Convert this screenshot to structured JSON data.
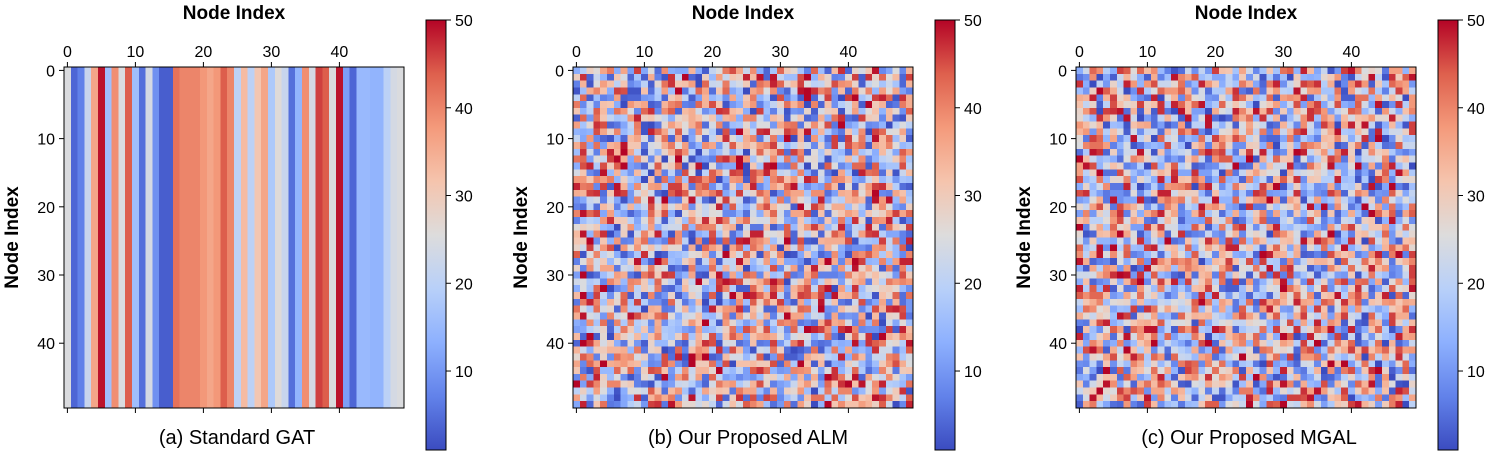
{
  "chart_data": [
    {
      "type": "heatmap",
      "caption": "(a) Standard GAT",
      "xlabel": "Node Index",
      "ylabel": "Node Index",
      "size": 50,
      "pattern": "columns",
      "seed": 11,
      "x_ticks": [
        "0",
        "10",
        "20",
        "30",
        "40"
      ],
      "y_ticks": [
        "0",
        "10",
        "20",
        "30",
        "40"
      ],
      "colorbar": {
        "min": 1,
        "max": 50,
        "ticks": [
          "10",
          "20",
          "30",
          "40",
          "50"
        ],
        "colormap": "coolwarm"
      },
      "column_values": [
        25,
        4,
        7,
        22,
        36,
        49,
        16,
        39,
        25,
        44,
        16,
        5,
        24,
        9,
        3,
        3,
        42,
        40,
        40,
        40,
        38,
        36,
        38,
        44,
        40,
        20,
        33,
        20,
        31,
        36,
        18,
        26,
        22,
        5,
        14,
        39,
        24,
        46,
        44,
        25,
        49,
        11,
        4,
        15,
        15,
        14,
        14,
        20,
        24,
        25
      ]
    },
    {
      "type": "heatmap",
      "caption": "(b) Our Proposed ALM",
      "xlabel": "Node Index",
      "ylabel": "Node Index",
      "size": 50,
      "pattern": "random",
      "seed": 23,
      "x_ticks": [
        "0",
        "10",
        "20",
        "30",
        "40"
      ],
      "y_ticks": [
        "0",
        "10",
        "20",
        "30",
        "40"
      ],
      "colorbar": {
        "min": 1,
        "max": 50,
        "ticks": [
          "10",
          "20",
          "30",
          "40",
          "50"
        ],
        "colormap": "coolwarm"
      }
    },
    {
      "type": "heatmap",
      "caption": "(c) Our Proposed MGAL",
      "xlabel": "Node Index",
      "ylabel": "Node Index",
      "size": 50,
      "pattern": "random",
      "seed": 57,
      "x_ticks": [
        "0",
        "10",
        "20",
        "30",
        "40"
      ],
      "y_ticks": [
        "0",
        "10",
        "20",
        "30",
        "40"
      ],
      "colorbar": {
        "min": 1,
        "max": 50,
        "ticks": [
          "10",
          "20",
          "30",
          "40",
          "50"
        ],
        "colormap": "coolwarm"
      }
    }
  ]
}
